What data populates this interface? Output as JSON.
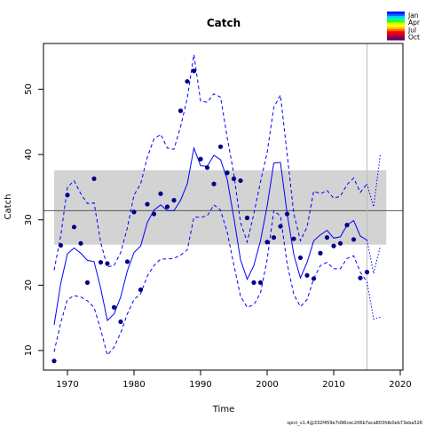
{
  "chart_data": {
    "type": "line",
    "title": "Catch",
    "xlabel": "Time",
    "ylabel": "Catch",
    "xlim": [
      1966.4,
      2020.4
    ],
    "ylim": [
      7,
      57
    ],
    "xticks": [
      1970,
      1980,
      1990,
      2000,
      2010,
      2020
    ],
    "yticks": [
      10,
      20,
      30,
      40,
      50
    ],
    "grid": false,
    "legend_position": "top-right",
    "legend": [
      {
        "label": "Jan",
        "color": "#0000ff"
      },
      {
        "label": "Apr",
        "color": "#00ff66"
      },
      {
        "label": "Jul",
        "color": "#ffff00"
      },
      {
        "label": "Oct",
        "color": "#ff0000"
      }
    ],
    "legend_gradient": [
      "#0000ff",
      "#0066ff",
      "#00ccff",
      "#00ff99",
      "#33ff00",
      "#ccff00",
      "#ffff00",
      "#ffcc00",
      "#ff6600",
      "#ff0000",
      "#cc0033",
      "#99004d",
      "#660066"
    ],
    "footer_text": "spict_v1.4@332f459e7d96cec206b7aca803fdb0eb73eba526",
    "reference_band": {
      "lower": 26.2,
      "upper": 37.6,
      "color": "#d3d3d3"
    },
    "reference_line": {
      "y": 31.4,
      "color": "#555555"
    },
    "vline_x": 2015,
    "series": [
      {
        "kind": "observed",
        "color": "#00008b",
        "x": [
          1968,
          1969,
          1970,
          1971,
          1972,
          1973,
          1974,
          1975,
          1976,
          1977,
          1978,
          1979,
          1980,
          1981,
          1982,
          1983,
          1984,
          1985,
          1986,
          1987,
          1988,
          1989,
          1990,
          1991,
          1992,
          1993,
          1994,
          1995,
          1996,
          1997,
          1998,
          1999,
          2000,
          2001,
          2002,
          2003,
          2004,
          2005,
          2006,
          2007,
          2008,
          2009,
          2010,
          2011,
          2012,
          2013,
          2014,
          2015
        ],
        "y": [
          8.4,
          26.1,
          33.8,
          28.9,
          26.4,
          20.4,
          36.3,
          23.5,
          23.3,
          16.6,
          14.4,
          23.6,
          31.2,
          19.3,
          32.4,
          30.9,
          34.0,
          32.0,
          33.0,
          46.7,
          51.2,
          52.8,
          39.3,
          38.0,
          35.5,
          41.2,
          37.2,
          36.3,
          36.0,
          30.3,
          20.4,
          20.4,
          26.6,
          27.3,
          29.0,
          30.9,
          27.1,
          24.2,
          21.5,
          21.0,
          24.9,
          27.3,
          26.0,
          26.4,
          29.2,
          27.0,
          21.1,
          22.0
        ]
      },
      {
        "kind": "fitted",
        "color": "#0000ff",
        "x": [
          1968,
          1969,
          1970,
          1971,
          1972,
          1973,
          1974,
          1975,
          1976,
          1977,
          1978,
          1979,
          1980,
          1981,
          1982,
          1983,
          1984,
          1985,
          1986,
          1987,
          1988,
          1989,
          1990,
          1991,
          1992,
          1993,
          1994,
          1995,
          1996,
          1997,
          1998,
          1999,
          2000,
          2001,
          2002,
          2003,
          2004,
          2005,
          2006,
          2007,
          2008,
          2009,
          2010,
          2011,
          2012,
          2013,
          2014,
          2015
        ],
        "y": [
          13.9,
          20.3,
          24.8,
          25.7,
          24.9,
          23.8,
          23.6,
          19.5,
          14.6,
          15.6,
          18.2,
          22.2,
          25.0,
          26.0,
          29.6,
          31.5,
          32.3,
          31.4,
          31.4,
          33.0,
          35.5,
          41.0,
          38.3,
          38.2,
          39.9,
          39.2,
          36.2,
          30.3,
          23.9,
          20.9,
          23.0,
          26.8,
          32.1,
          38.7,
          38.8,
          31.0,
          24.7,
          21.1,
          23.5,
          26.8,
          27.7,
          28.4,
          27.2,
          27.4,
          29.2,
          29.9,
          27.5,
          26.9
        ]
      },
      {
        "kind": "fitted_upper",
        "color": "#0000ff",
        "dashed": true,
        "x": [
          1968,
          1969,
          1970,
          1971,
          1972,
          1973,
          1974,
          1975,
          1976,
          1977,
          1978,
          1979,
          1980,
          1981,
          1982,
          1983,
          1984,
          1985,
          1986,
          1987,
          1988,
          1989,
          1990,
          1991,
          1992,
          1993,
          1994,
          1995,
          1996,
          1997,
          1998,
          1999,
          2000,
          2001,
          2002,
          2003,
          2004,
          2005,
          2006,
          2007,
          2008,
          2009,
          2010,
          2011,
          2012,
          2013,
          2014,
          2015
        ],
        "y": [
          22.3,
          27.6,
          35.0,
          36.0,
          34.0,
          32.5,
          32.6,
          26.5,
          22.8,
          23.0,
          25.0,
          28.8,
          33.8,
          35.5,
          39.6,
          42.4,
          43.1,
          41.0,
          40.8,
          44.3,
          48.6,
          55.3,
          48.2,
          48.0,
          49.3,
          48.8,
          42.6,
          37.0,
          29.6,
          26.6,
          30.9,
          35.8,
          40.3,
          47.2,
          49.1,
          40.1,
          31.0,
          26.8,
          28.9,
          34.4,
          34.0,
          34.5,
          33.3,
          33.6,
          35.4,
          36.4,
          34.2,
          35.5
        ]
      },
      {
        "kind": "fitted_lower",
        "color": "#0000ff",
        "dashed": true,
        "x": [
          1968,
          1969,
          1970,
          1971,
          1972,
          1973,
          1974,
          1975,
          1976,
          1977,
          1978,
          1979,
          1980,
          1981,
          1982,
          1983,
          1984,
          1985,
          1986,
          1987,
          1988,
          1989,
          1990,
          1991,
          1992,
          1993,
          1994,
          1995,
          1996,
          1997,
          1998,
          1999,
          2000,
          2001,
          2002,
          2003,
          2004,
          2005,
          2006,
          2007,
          2008,
          2009,
          2010,
          2011,
          2012,
          2013,
          2014,
          2015
        ],
        "y": [
          9.8,
          14.3,
          17.8,
          18.4,
          18.2,
          17.6,
          16.6,
          13.2,
          9.3,
          10.5,
          12.7,
          15.6,
          17.8,
          18.7,
          21.4,
          23.0,
          24.0,
          24.0,
          24.1,
          24.6,
          25.4,
          30.4,
          30.4,
          30.6,
          32.3,
          31.5,
          28.1,
          23.1,
          18.3,
          16.6,
          17.0,
          18.8,
          23.9,
          31.4,
          30.6,
          23.3,
          18.6,
          16.7,
          17.8,
          21.0,
          23.0,
          23.5,
          22.5,
          22.5,
          24.1,
          24.5,
          22.0,
          20.5
        ]
      },
      {
        "kind": "forecast",
        "color": "#0000ff",
        "dotted": true,
        "x": [
          2015,
          2016,
          2017
        ],
        "y": [
          26.9,
          21.8,
          26.0
        ]
      },
      {
        "kind": "forecast_upper",
        "color": "#0000ff",
        "dotted": true,
        "x": [
          2015,
          2016,
          2017
        ],
        "y": [
          35.5,
          32.0,
          40.0
        ]
      },
      {
        "kind": "forecast_lower",
        "color": "#0000ff",
        "dotted": true,
        "x": [
          2015,
          2016,
          2017
        ],
        "y": [
          20.5,
          14.8,
          15.1
        ]
      }
    ]
  }
}
